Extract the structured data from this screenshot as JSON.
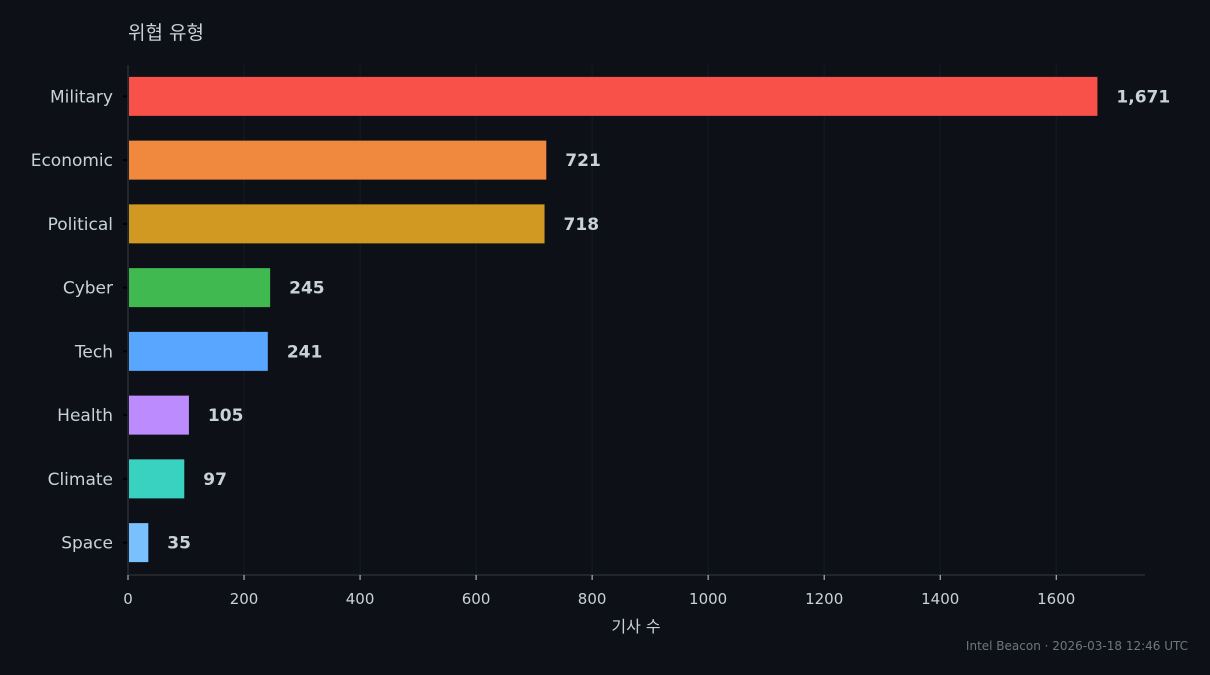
{
  "chart_data": {
    "type": "bar",
    "orientation": "horizontal",
    "title": "위협 유형",
    "xlabel": "기사 수",
    "ylabel": "",
    "categories": [
      "Military",
      "Economic",
      "Political",
      "Cyber",
      "Tech",
      "Health",
      "Climate",
      "Space"
    ],
    "values": [
      1671,
      721,
      718,
      245,
      241,
      105,
      97,
      35
    ],
    "value_labels": [
      "1,671",
      "721",
      "718",
      "245",
      "241",
      "105",
      "97",
      "35"
    ],
    "colors": [
      "#f85149",
      "#f0883e",
      "#d29922",
      "#3fb950",
      "#58a6ff",
      "#bc8cff",
      "#39d2c0",
      "#79c0ff"
    ],
    "xlim": [
      0,
      1753
    ],
    "xticks": [
      0,
      200,
      400,
      600,
      800,
      1000,
      1200,
      1400,
      1600
    ],
    "grid": "vertical"
  },
  "footer": "Intel Beacon · 2026-03-18 12:46 UTC"
}
